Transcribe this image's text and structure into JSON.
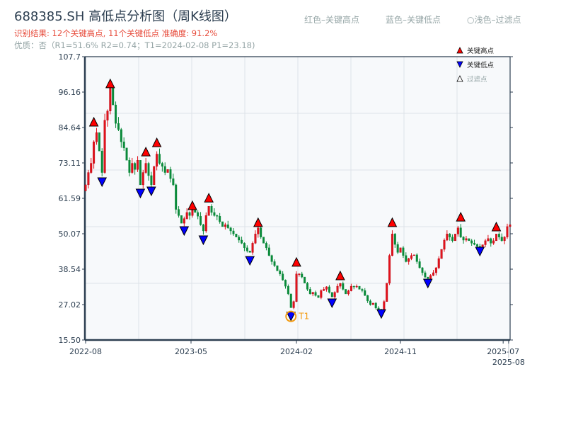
{
  "header": {
    "title": "688385.SH 高低点分析图（周K线图）",
    "result_line": "识别结果: 12个关键高点, 11个关键低点  准确度: 91.2%",
    "quality_line": "优质：否（R1=51.6%  R2=0.74；T1=2024-02-08 P1=23.18)",
    "hint_red": "红色–关键高点",
    "hint_blue": "蓝色–关键低点",
    "hint_light": "○浅色–过滤点"
  },
  "chart_data": {
    "type": "candlestick",
    "title": "688385.SH 高低点分析图（周K线图）",
    "ylim": [
      15.5,
      107.7
    ],
    "y_ticks": [
      "15.50",
      "27.02",
      "38.54",
      "50.07",
      "61.59",
      "73.11",
      "84.64",
      "96.16",
      "107.7"
    ],
    "x_ticks": [
      {
        "label": "2022-08",
        "week": 0
      },
      {
        "label": "2023-05",
        "week": 38.5
      },
      {
        "label": "2024-02",
        "week": 77
      },
      {
        "label": "2024-11",
        "week": 115
      },
      {
        "label": "2025-07",
        "week": 152.5
      },
      {
        "label": "2025-08",
        "week": 154.5
      }
    ],
    "grid": true,
    "up_color": "#e3121b",
    "down_color": "#0a8a3a",
    "weekly_close": [
      66,
      70,
      73,
      80,
      83,
      77,
      70,
      87,
      90,
      98,
      92,
      86,
      84,
      80,
      78,
      74,
      70,
      73,
      71,
      74,
      66,
      70,
      73,
      69,
      66,
      72,
      76,
      73,
      72,
      70,
      71,
      68,
      66,
      58,
      56,
      53.5,
      55,
      57,
      56,
      58,
      57,
      55.8,
      53,
      51,
      56,
      59,
      57,
      56,
      55.8,
      54,
      52.4,
      53,
      52,
      51,
      50,
      49,
      48,
      47,
      45.5,
      44.5,
      44,
      47,
      50,
      52,
      49,
      47,
      45.5,
      43,
      41,
      39.7,
      38,
      37,
      35,
      33,
      30.5,
      26,
      28,
      37,
      37,
      36,
      34,
      32,
      30.5,
      31,
      30,
      29.3,
      31.6,
      32,
      32.8,
      31,
      29.5,
      31,
      33,
      33.9,
      32,
      30.5,
      31.5,
      33,
      32.8,
      33,
      32,
      31.6,
      30,
      28.2,
      27,
      27.5,
      25.9,
      25.5,
      25,
      28,
      34,
      43,
      50,
      46.6,
      44,
      45.5,
      43,
      41,
      42,
      43,
      43.2,
      41,
      39,
      37.4,
      36,
      35.5,
      36.5,
      37.4,
      39,
      42,
      45,
      48,
      50,
      49,
      47.8,
      50,
      52,
      49,
      48,
      48.5,
      47.8,
      47,
      46.6,
      46,
      45.5,
      46.5,
      47.8,
      48.5,
      47,
      47.8,
      50,
      49,
      47.8,
      49,
      52.4,
      53
    ],
    "key_highs": [
      {
        "week": 3,
        "price": 85.1
      },
      {
        "week": 9,
        "price": 97.6
      },
      {
        "week": 22,
        "price": 75.4
      },
      {
        "week": 26,
        "price": 78.4
      },
      {
        "week": 39,
        "price": 57.9
      },
      {
        "week": 45,
        "price": 60.4
      },
      {
        "week": 63,
        "price": 52.4
      },
      {
        "week": 77,
        "price": 39.5
      },
      {
        "week": 93,
        "price": 35.1
      },
      {
        "week": 112,
        "price": 52.4
      },
      {
        "week": 137,
        "price": 54.2
      },
      {
        "week": 150,
        "price": 51.0
      }
    ],
    "key_lows": [
      {
        "week": 6,
        "price": 66.9
      },
      {
        "week": 20,
        "price": 63.2
      },
      {
        "week": 24,
        "price": 63.9
      },
      {
        "week": 36,
        "price": 51.0
      },
      {
        "week": 43,
        "price": 48.0
      },
      {
        "week": 60,
        "price": 41.3
      },
      {
        "week": 75,
        "price": 23.2
      },
      {
        "week": 90,
        "price": 27.5
      },
      {
        "week": 108,
        "price": 24.0
      },
      {
        "week": 125,
        "price": 33.9
      },
      {
        "week": 144,
        "price": 44.3
      }
    ],
    "t1": {
      "label": "T1",
      "week": 75,
      "price": 23.18,
      "color": "#f39c12"
    },
    "legend": {
      "placement": "top-right",
      "items": [
        {
          "label": "关键高点",
          "color": "#ff0000",
          "shape": "triangle-up"
        },
        {
          "label": "关键低点",
          "color": "#0000ff",
          "shape": "triangle-down"
        },
        {
          "label": "过滤点",
          "color": "#ffffff",
          "shape": "triangle-up-hollow"
        }
      ]
    }
  }
}
